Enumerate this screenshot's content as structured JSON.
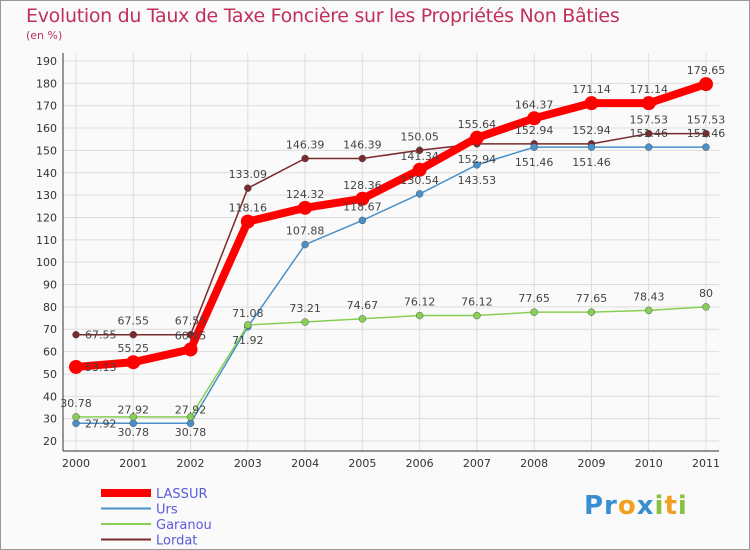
{
  "chart_data": {
    "type": "line",
    "title": "Evolution du Taux de Taxe Foncière sur les Propriétés Non Bâties",
    "subtitle": "(en %)",
    "x": [
      "2000",
      "2001",
      "2002",
      "2003",
      "2004",
      "2005",
      "2006",
      "2007",
      "2008",
      "2009",
      "2010",
      "2011"
    ],
    "ylim": [
      20,
      190
    ],
    "yticks": [
      20,
      30,
      40,
      50,
      60,
      70,
      80,
      90,
      100,
      110,
      120,
      130,
      140,
      150,
      160,
      170,
      180,
      190
    ],
    "grid": true,
    "legend": "bottom-left",
    "series": [
      {
        "name": "LASSUR",
        "color": "#ff0000",
        "values": [
          53.13,
          55.25,
          60.95,
          118.16,
          124.32,
          128.36,
          141.34,
          155.64,
          164.37,
          171.14,
          171.14,
          179.65
        ]
      },
      {
        "name": "Urs",
        "color": "#4a90c8",
        "values": [
          27.92,
          27.92,
          27.92,
          71.08,
          107.88,
          118.67,
          130.54,
          143.53,
          151.46,
          151.46,
          151.46,
          151.46
        ]
      },
      {
        "name": "Garanou",
        "color": "#88d055",
        "values": [
          30.78,
          30.78,
          30.78,
          71.92,
          73.21,
          74.67,
          76.12,
          76.12,
          77.65,
          77.65,
          78.43,
          80
        ]
      },
      {
        "name": "Lordat",
        "color": "#7a2a2a",
        "values": [
          67.55,
          67.55,
          67.55,
          133.09,
          146.39,
          146.39,
          150.05,
          152.94,
          152.94,
          152.94,
          157.53,
          157.53
        ]
      }
    ]
  },
  "logo": "Proxiti"
}
